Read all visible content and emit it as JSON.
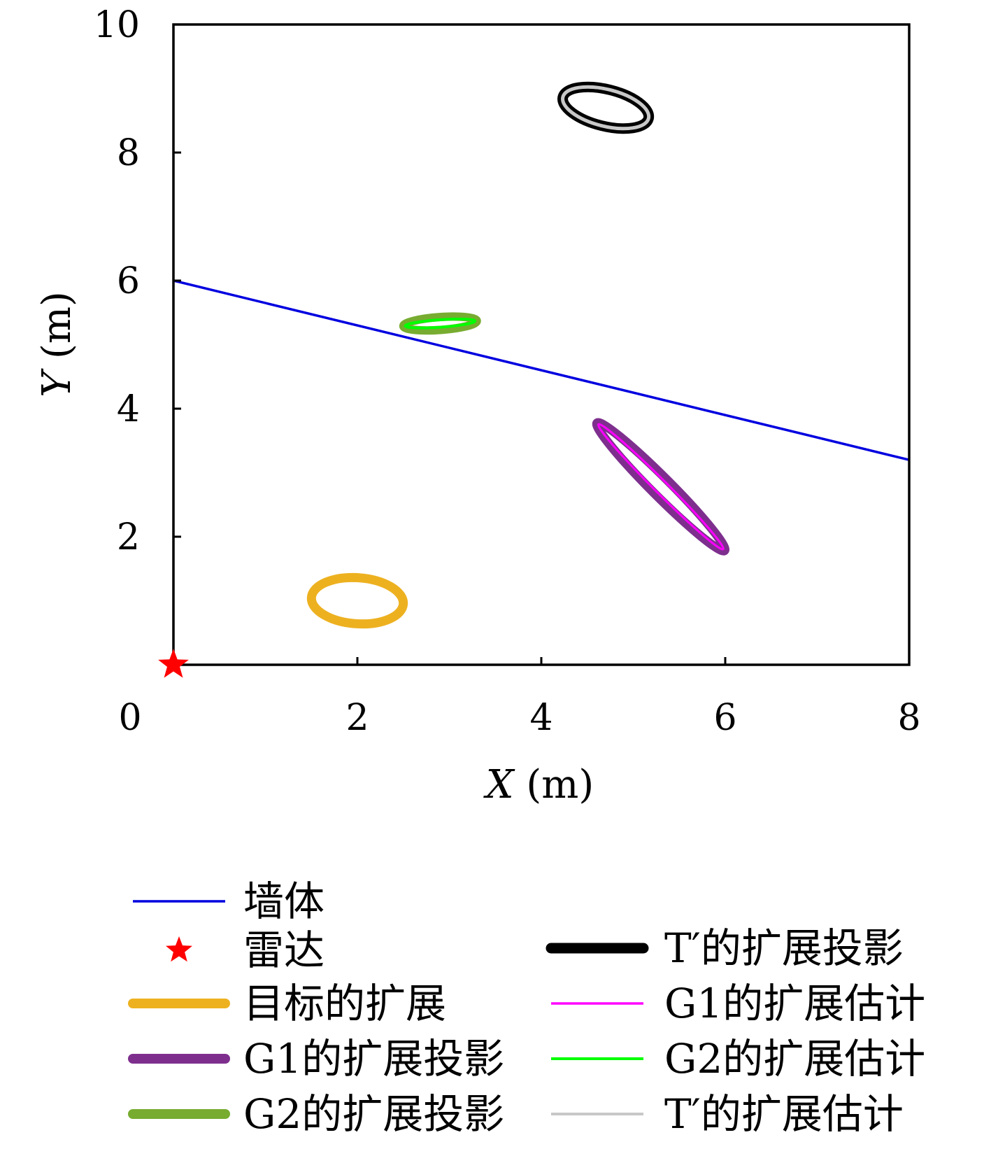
{
  "chart_data": {
    "type": "scatter",
    "title": "",
    "xlabel": {
      "symbol": "X",
      "unit": " (m)"
    },
    "ylabel": {
      "symbol": "Y",
      "unit": " (m)"
    },
    "xlim": [
      0,
      8
    ],
    "ylim": [
      0,
      10
    ],
    "xticks": [
      "0",
      "2",
      "4",
      "6",
      "8"
    ],
    "yticks": [
      "2",
      "4",
      "6",
      "8",
      "10"
    ],
    "grid": false,
    "legend_position": "bottom",
    "series": [
      {
        "id": "wall",
        "name": "墙体",
        "kind": "line",
        "color": "#0000e0",
        "points": [
          [
            0,
            6.0
          ],
          [
            8,
            3.2
          ]
        ]
      },
      {
        "id": "radar",
        "name": "雷达",
        "kind": "star",
        "color": "#ff0000",
        "points": [
          [
            0,
            0
          ]
        ]
      },
      {
        "id": "target_ext",
        "name": "目标的扩展",
        "kind": "ellipse",
        "color": "#EDB120",
        "center": [
          2.0,
          1.0
        ],
        "semi_axes": [
          0.5,
          0.25
        ],
        "angle_deg": -4
      },
      {
        "id": "g1_proj",
        "name": "G1的扩展投影",
        "kind": "ellipse",
        "color": "#7E2F8E",
        "center": [
          5.3,
          2.78
        ],
        "semi_axes": [
          0.98,
          0.1
        ],
        "angle_deg": -45
      },
      {
        "id": "g2_proj",
        "name": "G2的扩展投影",
        "kind": "ellipse",
        "color": "#77AC30",
        "center": [
          2.9,
          5.33
        ],
        "semi_axes": [
          0.4,
          0.07
        ],
        "angle_deg": 4
      },
      {
        "id": "t_proj",
        "name": "T′的扩展投影",
        "kind": "ellipse",
        "color": "#000000",
        "center": [
          4.7,
          8.7
        ],
        "semi_axes": [
          0.48,
          0.2
        ],
        "angle_deg": -14
      },
      {
        "id": "g1_est",
        "name": "G1的扩展估计",
        "kind": "ellipse",
        "color": "#ff00ff",
        "center": [
          5.3,
          2.78
        ],
        "semi_axes": [
          0.96,
          0.07
        ],
        "angle_deg": -45
      },
      {
        "id": "g2_est",
        "name": "G2的扩展估计",
        "kind": "ellipse",
        "color": "#00ff00",
        "center": [
          2.9,
          5.33
        ],
        "semi_axes": [
          0.38,
          0.04
        ],
        "angle_deg": 4
      },
      {
        "id": "t_est",
        "name": "T′的扩展估计",
        "kind": "ellipse",
        "color": "#c8c8c8",
        "center": [
          4.7,
          8.7
        ],
        "semi_axes": [
          0.48,
          0.2
        ],
        "angle_deg": -14
      }
    ],
    "legend": {
      "left": [
        "wall",
        "radar",
        "target_ext",
        "g1_proj",
        "g2_proj"
      ],
      "right": [
        "t_proj",
        "g1_est",
        "g2_est",
        "t_est"
      ]
    }
  }
}
